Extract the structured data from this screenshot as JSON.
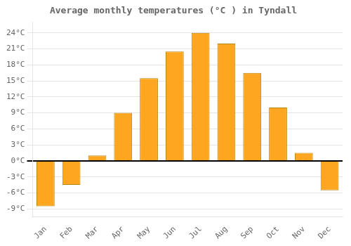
{
  "chart_data": {
    "type": "bar",
    "title": "Average monthly temperatures (°C ) in Tyndall",
    "categories": [
      "Jan",
      "Feb",
      "Mar",
      "Apr",
      "May",
      "Jun",
      "Jul",
      "Aug",
      "Sep",
      "Oct",
      "Nov",
      "Dec"
    ],
    "values": [
      -8.5,
      -4.5,
      1.0,
      9.0,
      15.5,
      20.5,
      24.0,
      22.0,
      16.5,
      10.0,
      1.5,
      -5.5
    ],
    "color": "#FFA620",
    "ylim": [
      -10.5,
      26
    ],
    "yticks": [
      {
        "value": -9,
        "label": "-9°C"
      },
      {
        "value": -6,
        "label": "-6°C"
      },
      {
        "value": -3,
        "label": "-3°C"
      },
      {
        "value": 0,
        "label": "0°C"
      },
      {
        "value": 3,
        "label": "3°C"
      },
      {
        "value": 6,
        "label": "6°C"
      },
      {
        "value": 9,
        "label": "9°C"
      },
      {
        "value": 12,
        "label": "12°C"
      },
      {
        "value": 15,
        "label": "15°C"
      },
      {
        "value": 18,
        "label": "18°C"
      },
      {
        "value": 21,
        "label": "21°C"
      },
      {
        "value": 24,
        "label": "24°C"
      }
    ],
    "grid": true
  }
}
